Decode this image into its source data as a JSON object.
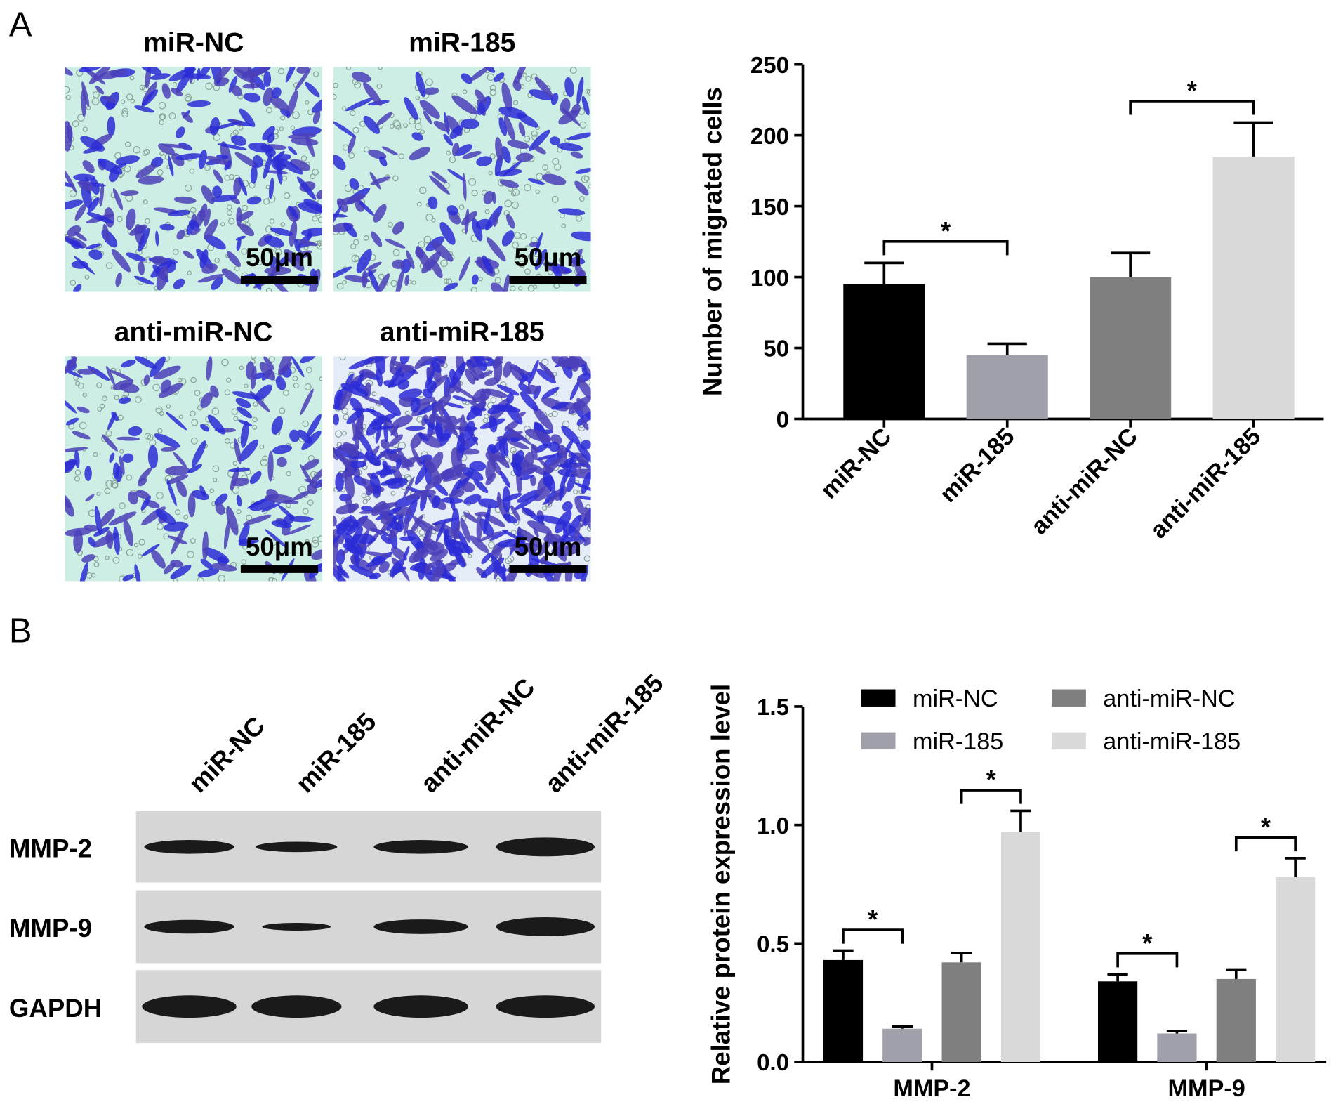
{
  "panel_labels": [
    "A",
    "B"
  ],
  "micrographs": [
    {
      "label": "miR-NC",
      "scale_bar": "50μm"
    },
    {
      "label": "miR-185",
      "scale_bar": "50μm"
    },
    {
      "label": "anti-miR-NC",
      "scale_bar": "50μm"
    },
    {
      "label": "anti-miR-185",
      "scale_bar": "50μm"
    }
  ],
  "blot": {
    "lanes": [
      "miR-NC",
      "miR-185",
      "anti-miR-NC",
      "anti-miR-185"
    ],
    "rows": [
      "MMP-2",
      "MMP-9",
      "GAPDH"
    ]
  },
  "chart_data": [
    {
      "type": "bar",
      "y_label": "Number of migrated cells",
      "categories": [
        "miR-NC",
        "miR-185",
        "anti-miR-NC",
        "anti-miR-185"
      ],
      "values": [
        95,
        45,
        100,
        185
      ],
      "errors": [
        15,
        8,
        17,
        24
      ],
      "colors": [
        "#000000",
        "#a0a0aa",
        "#7f7f7f",
        "#d9d9d9"
      ],
      "ylim": [
        0,
        250
      ],
      "yticks": [
        0,
        50,
        100,
        150,
        200,
        250
      ],
      "significance": [
        {
          "label": "*",
          "from": "miR-NC",
          "to": "miR-185"
        },
        {
          "label": "*",
          "from": "anti-miR-NC",
          "to": "anti-miR-185"
        }
      ]
    },
    {
      "type": "grouped-bar",
      "y_label": "Relative protein expression level",
      "categories": [
        "MMP-2",
        "MMP-9"
      ],
      "series": [
        {
          "name": "miR-NC",
          "color": "#000000",
          "values": [
            0.43,
            0.34
          ],
          "errors": [
            0.04,
            0.03
          ]
        },
        {
          "name": "miR-185",
          "color": "#a0a0aa",
          "values": [
            0.14,
            0.12
          ],
          "errors": [
            0.01,
            0.01
          ]
        },
        {
          "name": "anti-miR-NC",
          "color": "#7f7f7f",
          "values": [
            0.42,
            0.35
          ],
          "errors": [
            0.04,
            0.04
          ]
        },
        {
          "name": "anti-miR-185",
          "color": "#d9d9d9",
          "values": [
            0.97,
            0.78
          ],
          "errors": [
            0.09,
            0.08
          ]
        }
      ],
      "ylim": [
        0,
        1.5
      ],
      "yticks": [
        {
          "value": 0,
          "label": "0.0"
        },
        0.5,
        {
          "value": 1,
          "label": "1.0"
        },
        1.5
      ],
      "legend": "top",
      "significance": [
        {
          "label": "*",
          "group": "MMP-2",
          "from": "miR-NC",
          "to": "miR-185"
        },
        {
          "label": "*",
          "group": "MMP-2",
          "from": "anti-miR-NC",
          "to": "anti-miR-185"
        },
        {
          "label": "*",
          "group": "MMP-9",
          "from": "miR-NC",
          "to": "miR-185"
        },
        {
          "label": "*",
          "group": "MMP-9",
          "from": "anti-miR-NC",
          "to": "anti-miR-185"
        }
      ]
    }
  ]
}
